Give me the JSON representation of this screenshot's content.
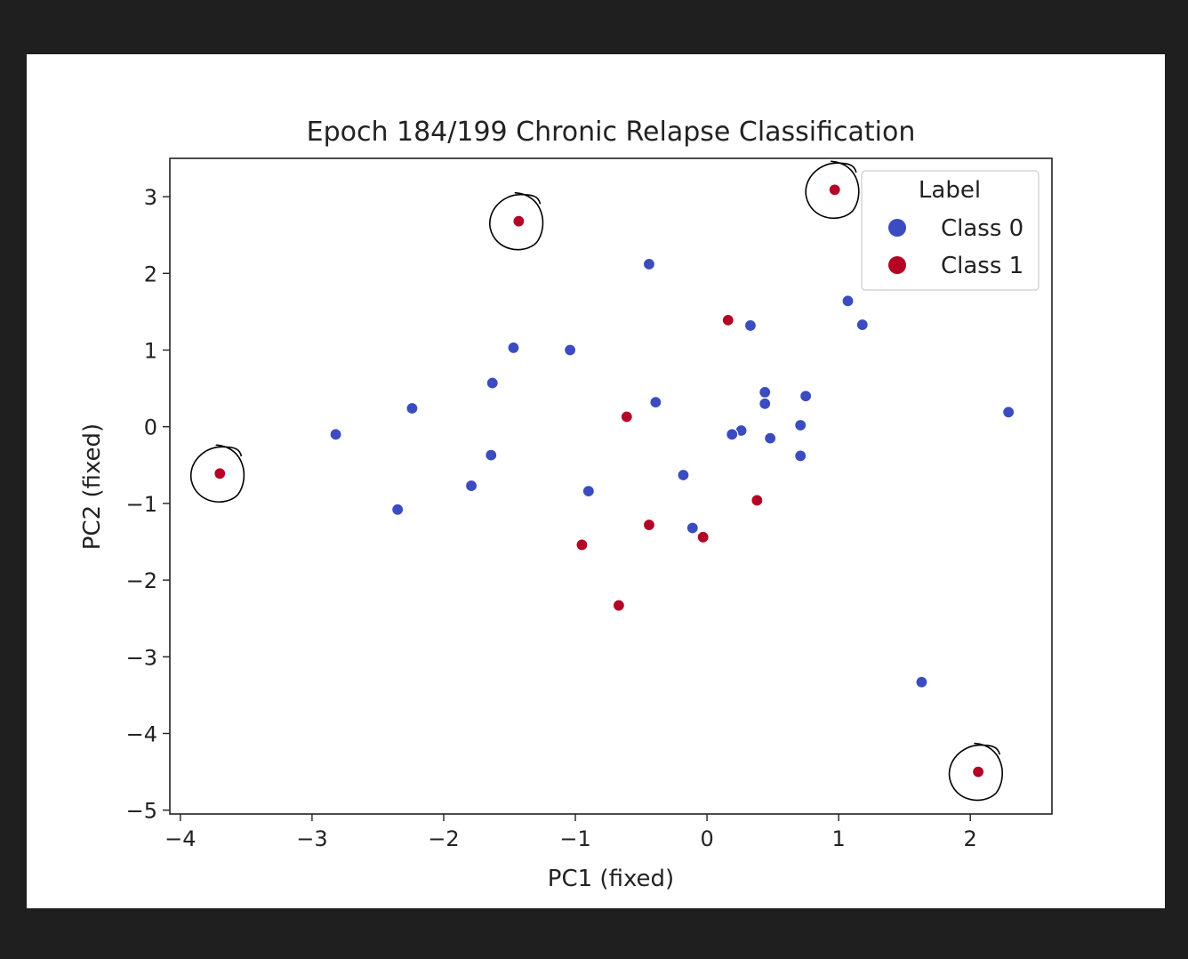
{
  "chart_data": {
    "type": "scatter",
    "title": "Epoch 184/199 Chronic Relapse Classification",
    "xlabel": "PC1 (fixed)",
    "ylabel": "PC2 (fixed)",
    "xlim": [
      -4.08,
      2.62
    ],
    "ylim": [
      -5.05,
      3.5
    ],
    "xticks": [
      -4,
      -3,
      -2,
      -1,
      0,
      1,
      2
    ],
    "yticks": [
      -5,
      -4,
      -3,
      -2,
      -1,
      0,
      1,
      2,
      3
    ],
    "grid": false,
    "legend": {
      "title": "Label",
      "placement": "top-right",
      "entries": [
        "Class 0",
        "Class 1"
      ]
    },
    "colors": {
      "Class 0": "#3b4cc0",
      "Class 1": "#b40426"
    },
    "series": [
      {
        "name": "Class 0",
        "points": [
          [
            -0.44,
            2.12
          ],
          [
            0.33,
            1.32
          ],
          [
            1.07,
            1.64
          ],
          [
            1.18,
            1.33
          ],
          [
            -1.47,
            1.03
          ],
          [
            -1.04,
            1.0
          ],
          [
            -1.63,
            0.57
          ],
          [
            -2.24,
            0.24
          ],
          [
            -0.39,
            0.32
          ],
          [
            0.44,
            0.45
          ],
          [
            0.44,
            0.3
          ],
          [
            0.75,
            0.4
          ],
          [
            -2.82,
            -0.1
          ],
          [
            0.71,
            0.02
          ],
          [
            0.26,
            -0.05
          ],
          [
            0.19,
            -0.1
          ],
          [
            0.48,
            -0.15
          ],
          [
            2.29,
            0.19
          ],
          [
            -1.64,
            -0.37
          ],
          [
            0.71,
            -0.38
          ],
          [
            -1.79,
            -0.77
          ],
          [
            -0.18,
            -0.63
          ],
          [
            -0.9,
            -0.84
          ],
          [
            -2.35,
            -1.08
          ],
          [
            -0.11,
            -1.32
          ],
          [
            1.63,
            -3.33
          ]
        ]
      },
      {
        "name": "Class 1",
        "points": [
          [
            -1.43,
            2.68
          ],
          [
            0.97,
            3.09
          ],
          [
            0.16,
            1.39
          ],
          [
            -0.61,
            0.13
          ],
          [
            -3.7,
            -0.61
          ],
          [
            0.38,
            -0.96
          ],
          [
            -0.44,
            -1.28
          ],
          [
            -0.03,
            -1.44
          ],
          [
            -0.95,
            -1.54
          ],
          [
            -0.67,
            -2.33
          ],
          [
            2.06,
            -4.5
          ]
        ]
      }
    ],
    "annotations": {
      "circled_points": [
        [
          -1.43,
          2.68
        ],
        [
          0.97,
          3.09
        ],
        [
          -3.7,
          -0.61
        ],
        [
          2.06,
          -4.5
        ]
      ]
    }
  }
}
